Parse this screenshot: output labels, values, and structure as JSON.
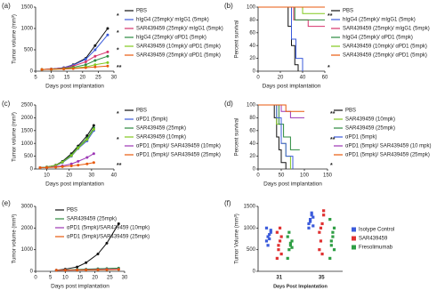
{
  "chart_data": [
    {
      "label": "(a)",
      "type": "line",
      "xlabel": "Days post implantation",
      "ylabel": "Tumor volume (mm³)",
      "x": [
        7,
        10,
        14,
        17,
        21,
        24,
        28
      ],
      "xlim": [
        5,
        30
      ],
      "xticks": [
        5,
        10,
        15,
        20,
        25,
        30
      ],
      "ylim": [
        0,
        1500
      ],
      "yticks": [
        0,
        500,
        1000,
        1500
      ],
      "series": [
        {
          "name": "PBS",
          "color": "#111111",
          "values": [
            40,
            50,
            80,
            150,
            300,
            600,
            1000
          ]
        },
        {
          "name": "hIgG4 (25mpk)/ mIgG1 (5mpk)",
          "color": "#3b5bdb",
          "values": [
            40,
            50,
            80,
            140,
            280,
            500,
            850
          ]
        },
        {
          "name": "SAR439459 (25mpk)/ mIgG1 (5mpk)",
          "color": "#d6336c",
          "values": [
            40,
            50,
            70,
            120,
            220,
            350,
            450
          ]
        },
        {
          "name": "hIgG4 (25mpk)/ αPD1 (5mpk)",
          "color": "#2b8a3e",
          "values": [
            40,
            45,
            60,
            90,
            150,
            250,
            350
          ]
        },
        {
          "name": "SAR439459 (10mpk)/ αPD1 (5mpk)",
          "color": "#82c91e",
          "values": [
            40,
            45,
            55,
            70,
            100,
            150,
            200
          ]
        },
        {
          "name": "SAR439459 (25mpk)/ αPD1 (5mpk)",
          "color": "#e8590c",
          "values": [
            40,
            45,
            50,
            60,
            80,
            100,
            120
          ]
        }
      ],
      "annotations": [
        "*",
        "*",
        "*",
        "**"
      ]
    },
    {
      "label": "(b)",
      "type": "step",
      "xlabel": "Days post implantation",
      "ylabel": "Percent survival",
      "xlim": [
        0,
        60
      ],
      "xticks": [
        0,
        20,
        40,
        60
      ],
      "ylim": [
        0,
        100
      ],
      "yticks": [
        0,
        20,
        40,
        60,
        80,
        100
      ],
      "series": [
        {
          "name": "PBS",
          "color": "#111111",
          "x": [
            0,
            27,
            30,
            33,
            36
          ],
          "values": [
            100,
            70,
            40,
            10,
            0
          ]
        },
        {
          "name": "hIgG4 (25mpk)/ mIgG1 (5mpk)",
          "color": "#3b5bdb",
          "x": [
            0,
            30,
            34,
            40
          ],
          "values": [
            100,
            50,
            20,
            0
          ]
        },
        {
          "name": "SAR439459 (25mpk)/ mIgG1 (5mpk)",
          "color": "#d6336c",
          "x": [
            0,
            32,
            45,
            60
          ],
          "values": [
            100,
            80,
            70,
            70
          ]
        },
        {
          "name": "hIgG4 (25mpk)/ αPD1 (5mpk)",
          "color": "#2b8a3e",
          "x": [
            0,
            33,
            60
          ],
          "values": [
            100,
            80,
            80
          ]
        },
        {
          "name": "SAR439459 (10mpk)/ αPD1 (5mpk)",
          "color": "#82c91e",
          "x": [
            0,
            40,
            60
          ],
          "values": [
            100,
            90,
            90
          ]
        },
        {
          "name": "SAR439459 (25mpk)/ αPD1 (5mpk)",
          "color": "#e8590c",
          "x": [
            0,
            60
          ],
          "values": [
            100,
            100
          ]
        }
      ],
      "annotations": [
        "**",
        "*"
      ]
    },
    {
      "label": "(c)",
      "type": "line",
      "xlabel": "Days post implantation",
      "ylabel": "Tumor volume (mm³)",
      "x": [
        7,
        10,
        14,
        17,
        21,
        24,
        28,
        31
      ],
      "xlim": [
        5,
        40
      ],
      "xticks": [
        10,
        20,
        30,
        40
      ],
      "ylim": [
        0,
        2500
      ],
      "yticks": [
        0,
        500,
        1000,
        1500,
        2000,
        2500
      ],
      "series": [
        {
          "name": "PBS",
          "color": "#111111",
          "values": [
            50,
            80,
            150,
            300,
            600,
            900,
            1300,
            1700
          ]
        },
        {
          "name": "αPD1 (5mpk)",
          "color": "#3b5bdb",
          "values": [
            50,
            70,
            130,
            250,
            500,
            800,
            1100,
            1500
          ]
        },
        {
          "name": "SAR439459 (25mpk)",
          "color": "#2b8a3e",
          "values": [
            50,
            80,
            140,
            280,
            550,
            850,
            1200,
            1600
          ]
        },
        {
          "name": "SAR439459 (10mpk)",
          "color": "#82c91e",
          "values": [
            50,
            75,
            140,
            270,
            520,
            820,
            1150,
            1550
          ]
        },
        {
          "name": "αPD1 (5mpk)/ SAR439459 (10mpk)",
          "color": "#9c36b5",
          "values": [
            50,
            60,
            90,
            120,
            200,
            300,
            450,
            600
          ]
        },
        {
          "name": "αPD1 (5mpk)/ SAR439459 (25mpk)",
          "color": "#e8590c",
          "values": [
            50,
            55,
            70,
            90,
            120,
            150,
            200,
            250
          ]
        }
      ],
      "annotations": [
        "*",
        "*",
        "**"
      ]
    },
    {
      "label": "(d)",
      "type": "step",
      "xlabel": "Days post implantation",
      "ylabel": "Percent survival",
      "xlim": [
        0,
        150
      ],
      "xticks": [
        0,
        50,
        100,
        150
      ],
      "ylim": [
        0,
        100
      ],
      "yticks": [
        0,
        20,
        40,
        60,
        80,
        100
      ],
      "series": [
        {
          "name": "PBS",
          "color": "#111111",
          "x": [
            0,
            35,
            40,
            45,
            50,
            60
          ],
          "values": [
            100,
            80,
            50,
            30,
            10,
            0
          ]
        },
        {
          "name": "SAR439459 (10mpk)",
          "color": "#82c91e",
          "x": [
            0,
            40,
            50,
            60,
            70
          ],
          "values": [
            100,
            70,
            40,
            20,
            0
          ]
        },
        {
          "name": "SAR439459 (25mpk)",
          "color": "#2b8a3e",
          "x": [
            0,
            45,
            55,
            70,
            90
          ],
          "values": [
            100,
            70,
            50,
            30,
            30
          ]
        },
        {
          "name": "αPD1 (5mpk)",
          "color": "#3b5bdb",
          "x": [
            0,
            40,
            50,
            60,
            75
          ],
          "values": [
            100,
            80,
            40,
            20,
            0
          ]
        },
        {
          "name": "αPD1 (5mpk)/ SAR439459 (10 mpk)",
          "color": "#9c36b5",
          "x": [
            0,
            50,
            70,
            100
          ],
          "values": [
            100,
            90,
            80,
            80
          ]
        },
        {
          "name": "αPD1 (5mpk)/ SAR439459 (25mpk)",
          "color": "#e8590c",
          "x": [
            0,
            60,
            100
          ],
          "values": [
            100,
            90,
            90
          ]
        }
      ],
      "annotations": [
        "**",
        "**",
        "*"
      ]
    },
    {
      "label": "(e)",
      "type": "line",
      "xlabel": "Days post implantation",
      "ylabel": "Tumor volume (mm³)",
      "x": [
        7,
        10,
        14,
        17,
        21,
        24,
        28
      ],
      "xlim": [
        0,
        30
      ],
      "xticks": [
        0,
        5,
        10,
        15,
        20,
        25,
        30
      ],
      "ylim": [
        0,
        3000
      ],
      "yticks": [
        0,
        1000,
        2000,
        3000
      ],
      "series": [
        {
          "name": "PBS",
          "color": "#111111",
          "values": [
            50,
            100,
            200,
            400,
            800,
            1300,
            2200
          ]
        },
        {
          "name": "SAR439459 (25mpk)",
          "color": "#2b8a3e",
          "values": [
            50,
            60,
            80,
            100,
            120,
            130,
            150
          ]
        },
        {
          "name": "αPD1 (5mpk)/SAR439459 (10mpk)",
          "color": "#9c36b5",
          "values": [
            50,
            55,
            60,
            70,
            80,
            90,
            100
          ]
        },
        {
          "name": "αPD1 (5mpk)/SAR439459 (25mpk)",
          "color": "#e8590c",
          "values": [
            50,
            50,
            55,
            60,
            65,
            70,
            80
          ]
        }
      ]
    },
    {
      "label": "(f)",
      "type": "dot",
      "xlabel": "Days Post Implantation",
      "ylabel": "Tumor Volume (mm³)",
      "categories": [
        "31",
        "35"
      ],
      "ylim": [
        0,
        1500
      ],
      "yticks": [
        0,
        500,
        1000,
        1500
      ],
      "series": [
        {
          "name": "Isotype Control",
          "color": "#3b5bdb",
          "values": [
            [
              700,
              800,
              850,
              900,
              1000,
              600,
              750,
              950
            ],
            [
              1100,
              1200,
              1300,
              1250,
              1000,
              1150,
              1350,
              1050
            ]
          ]
        },
        {
          "name": "SAR439459",
          "color": "#e03131",
          "values": [
            [
              300,
              500,
              700,
              800,
              900,
              600,
              1000,
              400
            ],
            [
              500,
              700,
              1100,
              1300,
              900,
              1000,
              400,
              1400
            ]
          ]
        },
        {
          "name": "Fresolimumab",
          "color": "#2f9e44",
          "values": [
            [
              300,
              500,
              600,
              700,
              800,
              900,
              650,
              550
            ],
            [
              300,
              600,
              800,
              1000,
              1200,
              700,
              900,
              500
            ]
          ]
        }
      ]
    }
  ]
}
